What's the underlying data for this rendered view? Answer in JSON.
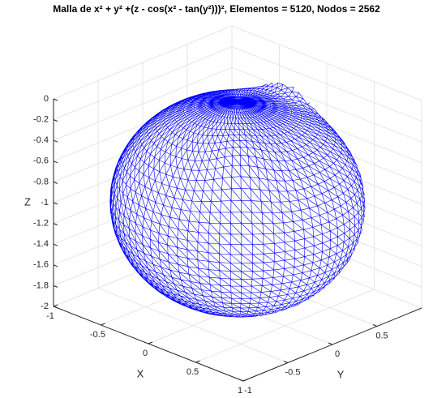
{
  "chart_data": {
    "type": "mesh3d",
    "title": "Malla de x² + y² +(z - cos(x² - tan(y²)))², Elementos = 5120, Nodos = 2562",
    "xlabel": "X",
    "ylabel": "Y",
    "zlabel": "Z",
    "xlim": [
      -1,
      1
    ],
    "ylim": [
      -1,
      1
    ],
    "zlim": [
      -2,
      0
    ],
    "xticks": [
      -1,
      -0.5,
      0,
      0.5,
      1
    ],
    "yticks": [
      -1,
      -0.5,
      0,
      0.5
    ],
    "zticks": [
      -2,
      -1.8,
      -1.6,
      -1.4,
      -1.2,
      -1,
      -0.8,
      -0.6,
      -0.4,
      -0.2,
      0
    ],
    "color": "#0000ff",
    "grid": true
  }
}
